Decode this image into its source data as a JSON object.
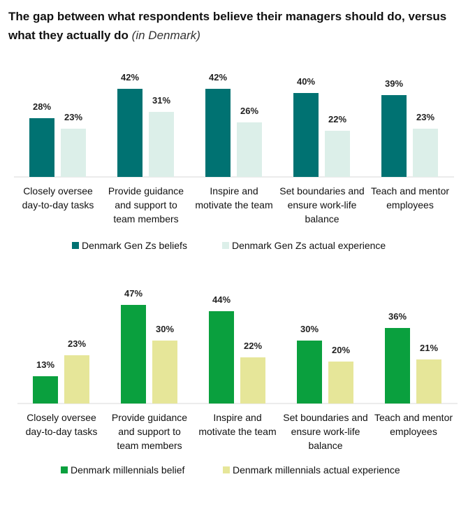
{
  "title": {
    "main": "The gap between what respondents believe their managers should do, versus what they actually do",
    "note": "(in Denmark)"
  },
  "chart_data": [
    {
      "type": "bar",
      "categories": [
        "Closely oversee day-to-day tasks",
        "Provide guidance and support to team members",
        "Inspire and motivate the team",
        "Set boundaries and ensure work-life balance",
        "Teach and mentor employees"
      ],
      "series": [
        {
          "name": "Denmark Gen Zs beliefs",
          "color": "#007272",
          "values": [
            28,
            42,
            42,
            40,
            39
          ],
          "value_labels": [
            "28%",
            "42%",
            "42%",
            "40%",
            "39%"
          ]
        },
        {
          "name": "Denmark Gen Zs actual experience",
          "color": "#dcefe9",
          "values": [
            23,
            31,
            26,
            22,
            23
          ],
          "value_labels": [
            "23%",
            "31%",
            "26%",
            "22%",
            "23%"
          ]
        }
      ],
      "legend": "bottom"
    },
    {
      "type": "bar",
      "categories": [
        "Closely oversee day-to-day tasks",
        "Provide guidance and support to team members",
        "Inspire and motivate the team",
        "Set boundaries and ensure work-life balance",
        "Teach and mentor employees"
      ],
      "series": [
        {
          "name": "Denmark millennials belief",
          "color": "#0aa03e",
          "values": [
            13,
            47,
            44,
            30,
            36
          ],
          "value_labels": [
            "13%",
            "47%",
            "44%",
            "30%",
            "36%"
          ]
        },
        {
          "name": "Denmark millennials actual experience",
          "color": "#e6e699",
          "values": [
            23,
            30,
            22,
            20,
            21
          ],
          "value_labels": [
            "23%",
            "30%",
            "22%",
            "20%",
            "21%"
          ]
        }
      ],
      "legend": "bottom"
    }
  ]
}
